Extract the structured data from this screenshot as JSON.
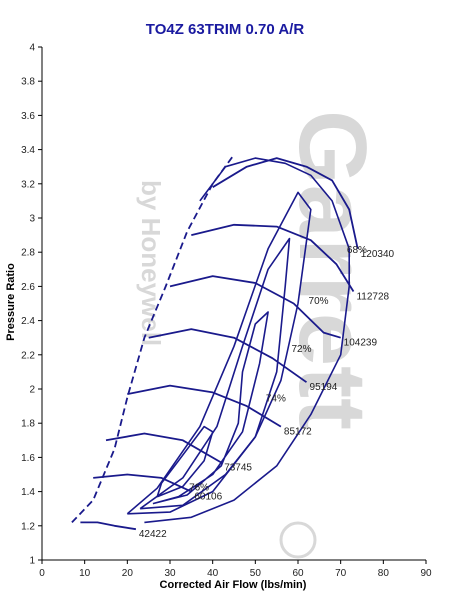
{
  "chart_data": {
    "type": "line",
    "title": "TO4Z  63TRIM 0.70 A/R",
    "xlabel": "Corrected Air Flow (lbs/min)",
    "ylabel": "Pressure Ratio",
    "xlim": [
      0,
      90
    ],
    "ylim": [
      1,
      4
    ],
    "x_ticks": [
      0,
      10,
      20,
      30,
      40,
      50,
      60,
      70,
      80,
      90
    ],
    "y_ticks": [
      "1",
      "1.2",
      "1.4",
      "1.6",
      "1.8",
      "2",
      "2.2",
      "2.4",
      "2.6",
      "2.8",
      "3",
      "3.2",
      "3.4",
      "3.6",
      "3.8",
      "4"
    ],
    "grid": false,
    "series_color": "#1a1a8c",
    "surge_line": [
      [
        7,
        1.22
      ],
      [
        12,
        1.35
      ],
      [
        17,
        1.65
      ],
      [
        20,
        1.95
      ],
      [
        24,
        2.3
      ],
      [
        29,
        2.6
      ],
      [
        34,
        2.92
      ],
      [
        40,
        3.2
      ],
      [
        45,
        3.37
      ]
    ],
    "speed_lines": [
      {
        "label": "42422",
        "points": [
          [
            9,
            1.22
          ],
          [
            13,
            1.22
          ],
          [
            17,
            1.2
          ],
          [
            22,
            1.18
          ]
        ]
      },
      {
        "label": "60106",
        "points": [
          [
            12,
            1.48
          ],
          [
            20,
            1.5
          ],
          [
            28,
            1.48
          ],
          [
            35,
            1.4
          ]
        ]
      },
      {
        "label": "73745",
        "points": [
          [
            15,
            1.7
          ],
          [
            24,
            1.74
          ],
          [
            33,
            1.7
          ],
          [
            42,
            1.57
          ]
        ]
      },
      {
        "label": "85172",
        "points": [
          [
            20,
            1.97
          ],
          [
            30,
            2.02
          ],
          [
            40,
            1.98
          ],
          [
            48,
            1.9
          ],
          [
            56,
            1.78
          ]
        ]
      },
      {
        "label": "95194",
        "points": [
          [
            25,
            2.3
          ],
          [
            35,
            2.35
          ],
          [
            45,
            2.3
          ],
          [
            54,
            2.18
          ],
          [
            62,
            2.04
          ]
        ]
      },
      {
        "label": "104239",
        "points": [
          [
            30,
            2.6
          ],
          [
            40,
            2.66
          ],
          [
            50,
            2.62
          ],
          [
            59,
            2.5
          ],
          [
            66,
            2.33
          ],
          [
            70,
            2.3
          ]
        ]
      },
      {
        "label": "112728",
        "points": [
          [
            35,
            2.9
          ],
          [
            45,
            2.96
          ],
          [
            55,
            2.95
          ],
          [
            63,
            2.87
          ],
          [
            69,
            2.73
          ],
          [
            73,
            2.57
          ]
        ]
      },
      {
        "label": "120340",
        "points": [
          [
            40,
            3.18
          ],
          [
            48,
            3.3
          ],
          [
            55,
            3.35
          ],
          [
            62,
            3.3
          ],
          [
            68,
            3.22
          ],
          [
            72,
            3.05
          ],
          [
            74,
            2.82
          ]
        ]
      }
    ],
    "efficiency_islands": [
      {
        "label": "76%",
        "points": [
          [
            27,
            1.37
          ],
          [
            33,
            1.43
          ],
          [
            38,
            1.58
          ],
          [
            40,
            1.75
          ],
          [
            38,
            1.78
          ],
          [
            32,
            1.58
          ],
          [
            28,
            1.45
          ],
          [
            27,
            1.37
          ]
        ]
      },
      {
        "label": "74%",
        "points": [
          [
            26,
            1.33
          ],
          [
            34,
            1.38
          ],
          [
            42,
            1.55
          ],
          [
            46,
            1.8
          ],
          [
            47,
            2.1
          ],
          [
            50,
            2.38
          ],
          [
            53,
            2.45
          ],
          [
            51,
            2.15
          ],
          [
            47,
            1.75
          ],
          [
            40,
            1.5
          ],
          [
            32,
            1.37
          ],
          [
            26,
            1.33
          ]
        ]
      },
      {
        "label": "72%",
        "points": [
          [
            23,
            1.3
          ],
          [
            33,
            1.32
          ],
          [
            43,
            1.5
          ],
          [
            50,
            1.72
          ],
          [
            55,
            2.1
          ],
          [
            57,
            2.6
          ],
          [
            58,
            2.88
          ],
          [
            53,
            2.7
          ],
          [
            47,
            2.25
          ],
          [
            41,
            1.78
          ],
          [
            33,
            1.48
          ],
          [
            23,
            1.3
          ]
        ]
      },
      {
        "label": "70%",
        "points": [
          [
            20,
            1.27
          ],
          [
            30,
            1.28
          ],
          [
            40,
            1.4
          ],
          [
            50,
            1.72
          ],
          [
            56,
            2.05
          ],
          [
            60,
            2.5
          ],
          [
            63,
            3.05
          ],
          [
            60,
            3.15
          ],
          [
            53,
            2.82
          ],
          [
            45,
            2.25
          ],
          [
            37,
            1.78
          ],
          [
            27,
            1.42
          ],
          [
            20,
            1.27
          ]
        ]
      },
      {
        "label": "68%",
        "points": [
          [
            37,
            3.1
          ],
          [
            43,
            3.3
          ],
          [
            50,
            3.35
          ],
          [
            57,
            3.32
          ],
          [
            63,
            3.25
          ],
          [
            68,
            3.1
          ],
          [
            72,
            2.82
          ],
          [
            72,
            2.6
          ],
          [
            70,
            2.2
          ],
          [
            63,
            1.85
          ],
          [
            55,
            1.55
          ],
          [
            45,
            1.35
          ],
          [
            35,
            1.25
          ],
          [
            24,
            1.22
          ]
        ]
      }
    ],
    "watermark": [
      "Garrett",
      "by Honeywell"
    ]
  }
}
